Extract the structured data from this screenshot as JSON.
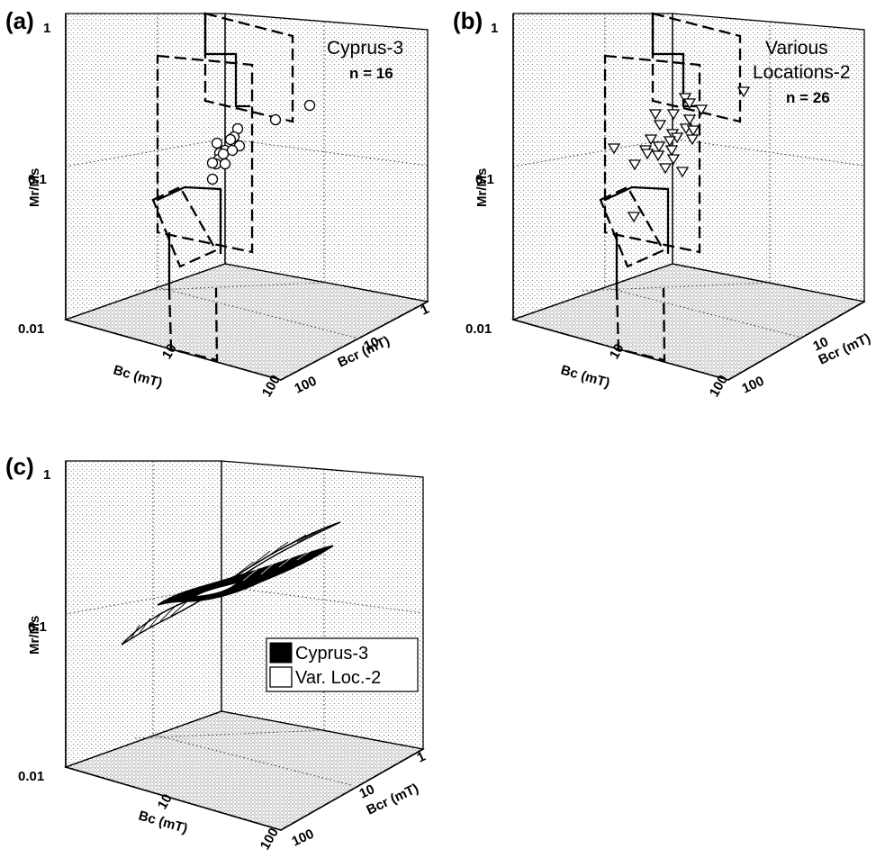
{
  "figure": {
    "panels": [
      {
        "label": "(a)",
        "annotation_title": [
          "Cyprus-3"
        ],
        "annotation_n": "n = 16"
      },
      {
        "label": "(b)",
        "annotation_title": [
          "Various",
          "Locations-2"
        ],
        "annotation_n": "n = 26"
      },
      {
        "label": "(c)",
        "annotation_title": [],
        "annotation_n": ""
      }
    ],
    "axes": {
      "z_label": "Mr/Ms",
      "x_label": "Bc (mT)",
      "y_label": "Bcr (mT)",
      "z_ticks": [
        "1",
        "0.1",
        "0.01"
      ],
      "x_ticks": [
        "10"
      ],
      "y_ticks": [
        "1",
        "10",
        "100"
      ],
      "corner_tick": "100"
    },
    "legend": [
      {
        "label": "Cyprus-3",
        "fill": "#000000"
      },
      {
        "label": "Var. Loc.-2",
        "fill": "#ffffff"
      }
    ]
  },
  "chart_data": [
    {
      "type": "scatter",
      "panel": "(a)",
      "title": "Cyprus-3",
      "xlabel": "Bc (mT)",
      "ylabel": "Bcr (mT)",
      "zlabel": "Mr/Ms",
      "x_scale": "log",
      "y_scale": "log",
      "z_scale": "log",
      "zlim": [
        0.01,
        1
      ],
      "ylim": [
        1,
        100
      ],
      "grid": true,
      "marker": "circle",
      "series": [
        {
          "name": "Cyprus-3",
          "points": [
            {
              "z": 0.3
            },
            {
              "z": 0.25
            },
            {
              "z": 0.21
            },
            {
              "z": 0.19
            },
            {
              "z": 0.18
            },
            {
              "z": 0.17
            },
            {
              "z": 0.17
            },
            {
              "z": 0.16
            },
            {
              "z": 0.16
            },
            {
              "z": 0.15
            },
            {
              "z": 0.15
            },
            {
              "z": 0.14
            },
            {
              "z": 0.13
            },
            {
              "z": 0.13
            },
            {
              "z": 0.12
            },
            {
              "z": 0.1
            }
          ]
        }
      ]
    },
    {
      "type": "scatter",
      "panel": "(b)",
      "title": "Various Locations-2",
      "xlabel": "Bc (mT)",
      "ylabel": "Bcr (mT)",
      "zlabel": "Mr/Ms",
      "x_scale": "log",
      "y_scale": "log",
      "z_scale": "log",
      "zlim": [
        0.01,
        1
      ],
      "ylim": [
        1,
        100
      ],
      "grid": true,
      "marker": "triangle-down",
      "series": [
        {
          "name": "Various Locations-2",
          "points": [
            {
              "z": 0.35
            },
            {
              "z": 0.33
            },
            {
              "z": 0.32
            },
            {
              "z": 0.3
            },
            {
              "z": 0.29
            },
            {
              "z": 0.28
            },
            {
              "z": 0.27
            },
            {
              "z": 0.25
            },
            {
              "z": 0.24
            },
            {
              "z": 0.22
            },
            {
              "z": 0.21
            },
            {
              "z": 0.2
            },
            {
              "z": 0.2
            },
            {
              "z": 0.19
            },
            {
              "z": 0.18
            },
            {
              "z": 0.17
            },
            {
              "z": 0.17
            },
            {
              "z": 0.16
            },
            {
              "z": 0.16
            },
            {
              "z": 0.15
            },
            {
              "z": 0.15
            },
            {
              "z": 0.14
            },
            {
              "z": 0.13
            },
            {
              "z": 0.12
            },
            {
              "z": 0.12
            },
            {
              "z": 0.06
            }
          ]
        }
      ]
    },
    {
      "type": "surface",
      "panel": "(c)",
      "xlabel": "Bc (mT)",
      "ylabel": "Bcr (mT)",
      "zlabel": "Mr/Ms",
      "x_scale": "log",
      "y_scale": "log",
      "z_scale": "log",
      "zlim": [
        0.01,
        1
      ],
      "ylim": [
        1,
        100
      ],
      "grid": true,
      "legend_position": "center-right",
      "series": [
        {
          "name": "Cyprus-3",
          "fill": "#000000",
          "z_range": [
            0.1,
            0.3
          ]
        },
        {
          "name": "Var. Loc.-2",
          "fill": "#ffffff",
          "z_range": [
            0.07,
            0.4
          ]
        }
      ]
    }
  ]
}
